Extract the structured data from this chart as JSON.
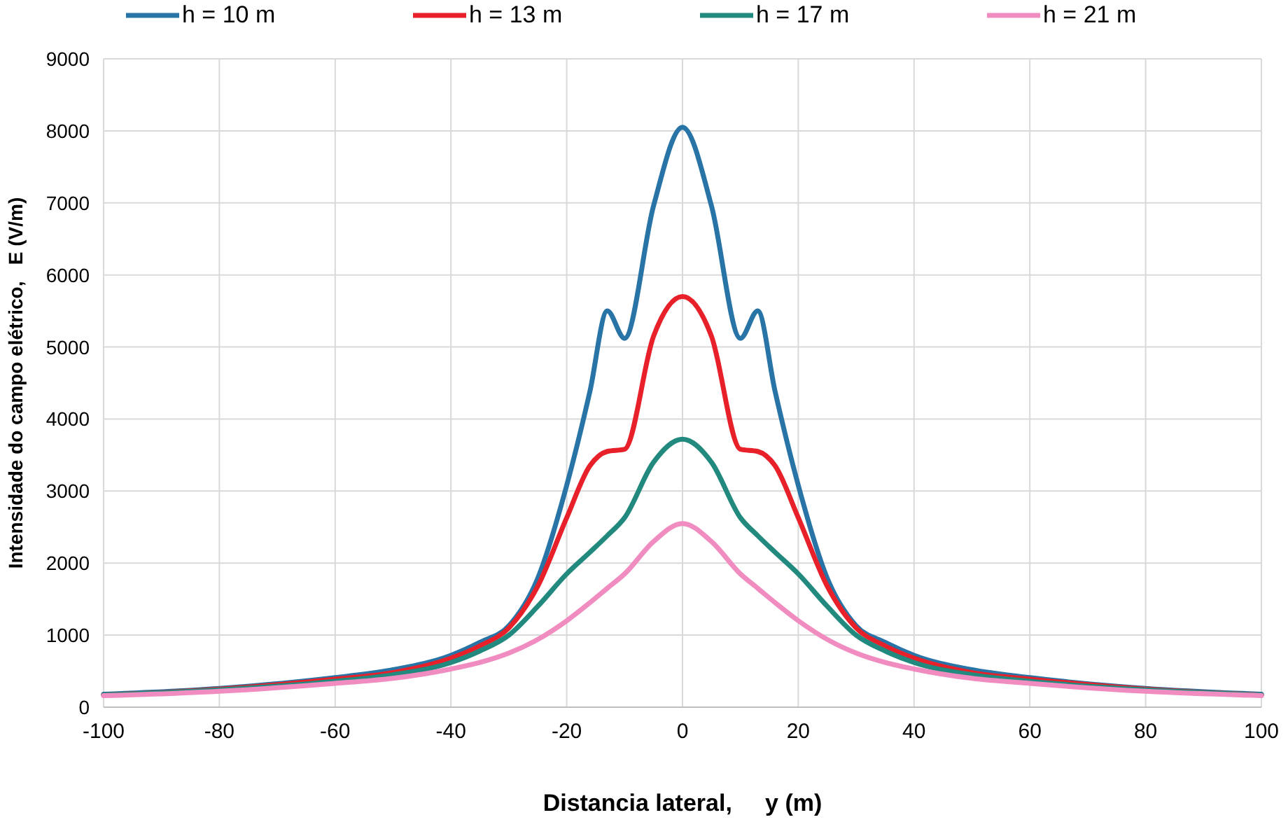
{
  "chart_data": {
    "type": "line",
    "xlabel": "Distancia lateral,     y (m)",
    "ylabel": "Intensidade do campo elétrico,   E (V/m)",
    "x": [
      -100,
      -80,
      -60,
      -50,
      -40,
      -35,
      -30,
      -25,
      -20,
      -16,
      -13,
      -10,
      -5,
      0,
      5,
      10,
      13,
      16,
      20,
      25,
      30,
      35,
      40,
      50,
      60,
      80,
      100
    ],
    "series": [
      {
        "name": "h = 10 m",
        "color": "#2874a6",
        "values": [
          180,
          260,
          410,
          520,
          720,
          900,
          1130,
          1790,
          3080,
          4380,
          5500,
          5120,
          6960,
          8050,
          6960,
          5120,
          5500,
          4380,
          3080,
          1790,
          1130,
          900,
          720,
          520,
          410,
          260,
          180
        ]
      },
      {
        "name": "h = 13 m",
        "color": "#e8202a",
        "values": [
          170,
          250,
          390,
          480,
          680,
          850,
          1100,
          1680,
          2630,
          3350,
          3550,
          3580,
          5150,
          5700,
          5150,
          3580,
          3550,
          3350,
          2630,
          1680,
          1100,
          850,
          680,
          480,
          390,
          250,
          170
        ]
      },
      {
        "name": "h = 17 m",
        "color": "#21897e",
        "values": [
          170,
          240,
          360,
          450,
          620,
          780,
          1000,
          1400,
          1850,
          2150,
          2380,
          2630,
          3400,
          3720,
          3400,
          2630,
          2380,
          2150,
          1850,
          1400,
          1000,
          780,
          620,
          450,
          360,
          240,
          170
        ]
      },
      {
        "name": "h = 21 m",
        "color": "#f08cbf",
        "values": [
          160,
          220,
          330,
          400,
          530,
          620,
          750,
          940,
          1200,
          1450,
          1650,
          1850,
          2300,
          2550,
          2300,
          1850,
          1650,
          1450,
          1200,
          940,
          750,
          620,
          530,
          400,
          330,
          220,
          160
        ]
      }
    ],
    "xlim": [
      -100,
      100
    ],
    "xticks": [
      -100,
      -80,
      -60,
      -40,
      -20,
      0,
      20,
      40,
      60,
      80,
      100
    ],
    "ylim": [
      0,
      9000
    ],
    "yticks": [
      0,
      1000,
      2000,
      3000,
      4000,
      5000,
      6000,
      7000,
      8000,
      9000
    ],
    "grid": true,
    "legend": "top",
    "marker": "none",
    "line_style": "solid"
  }
}
